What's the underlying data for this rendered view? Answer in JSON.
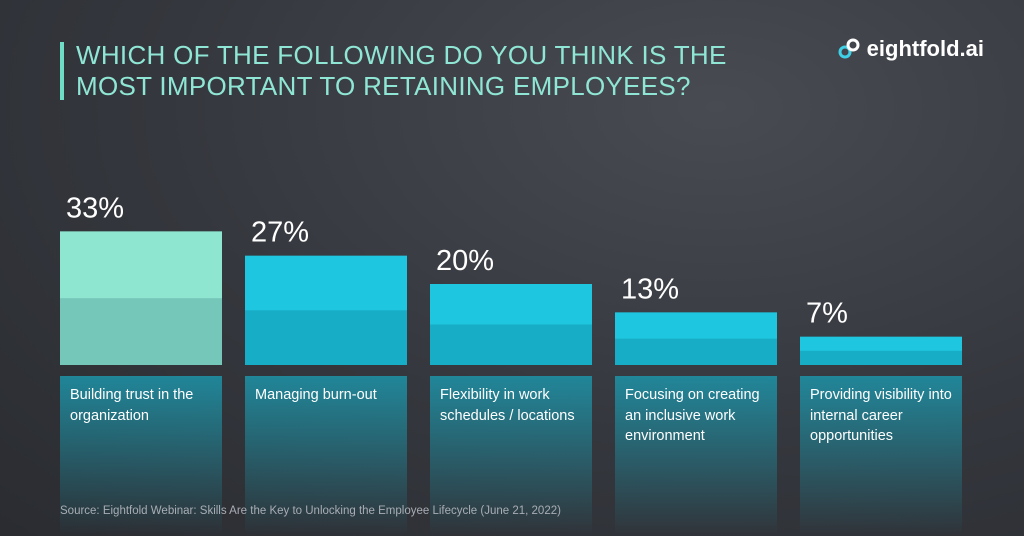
{
  "title": "WHICH OF THE FOLLOWING DO YOU THINK IS THE MOST IMPORTANT TO RETAINING EMPLOYEES?",
  "logo": "eightfold.ai",
  "source": "Source: Eightfold Webinar: Skills Are the Key to Unlocking the Employee Lifecycle (June 21, 2022)",
  "chart_data": {
    "type": "bar",
    "categories": [
      "Building trust in the organization",
      "Managing burn-out",
      "Flexibility in work schedules / locations",
      "Focusing on creating an inclusive work environment",
      "Providing visibility into internal career opportunities"
    ],
    "values": [
      33,
      27,
      20,
      13,
      7
    ],
    "value_labels": [
      "33%",
      "27%",
      "20%",
      "13%",
      "7%"
    ],
    "colors": [
      "#8fe6d0",
      "#1ec6df",
      "#1ec6df",
      "#1ec6df",
      "#1ec6df"
    ]
  }
}
